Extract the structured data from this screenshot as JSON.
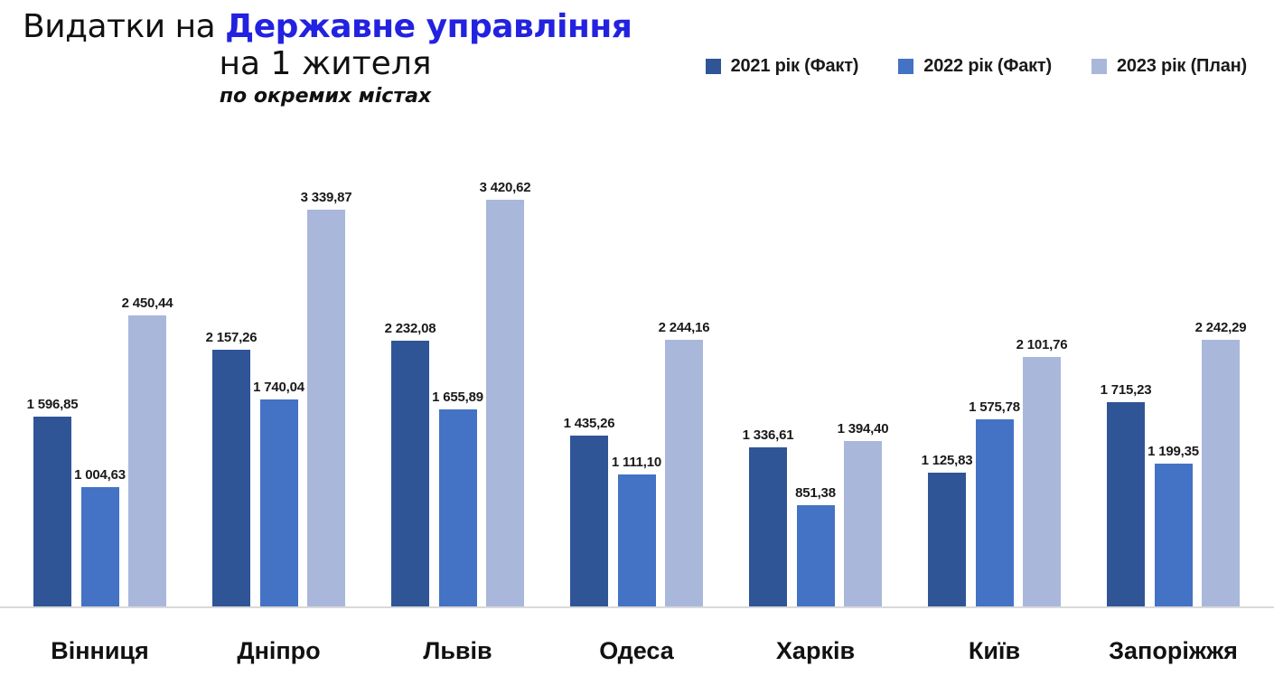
{
  "title": {
    "line1_black": "Видатки на ",
    "line1_blue": "Державне управління",
    "line2": "на 1 жителя",
    "line3": "по окремих містах",
    "blue_color": "#2222E0"
  },
  "legend": [
    {
      "label": "2021 рік (Факт)",
      "color": "#2F5597"
    },
    {
      "label": "2022 рік (Факт)",
      "color": "#4472C4"
    },
    {
      "label": "2023 рік (План)",
      "color": "#A9B7DB"
    }
  ],
  "chart_data": {
    "type": "bar",
    "title": "Видатки на Державне управління на 1 жителя по окремих містах",
    "categories": [
      "Вінниця",
      "Дніпро",
      "Львів",
      "Одеса",
      "Харків",
      "Київ",
      "Запоріжжя"
    ],
    "series": [
      {
        "name": "2021 рік (Факт)",
        "color": "#2F5597",
        "values": [
          1596.85,
          2157.26,
          2232.08,
          1435.26,
          1336.61,
          1125.83,
          1715.23
        ],
        "labels": [
          "1 596,85",
          "2 157,26",
          "2 232,08",
          "1 435,26",
          "1 336,61",
          "1 125,83",
          "1 715,23"
        ]
      },
      {
        "name": "2022 рік (Факт)",
        "color": "#4472C4",
        "values": [
          1004.63,
          1740.04,
          1655.89,
          1111.1,
          851.38,
          1575.78,
          1199.35
        ],
        "labels": [
          "1 004,63",
          "1 740,04",
          "1 655,89",
          "1 111,10",
          "851,38",
          "1 575,78",
          "1 199,35"
        ]
      },
      {
        "name": "2023 рік (План)",
        "color": "#A9B7DB",
        "values": [
          2450.44,
          3339.87,
          3420.62,
          2244.16,
          1394.4,
          2101.76,
          2242.29
        ],
        "labels": [
          "2 450,44",
          "3 339,87",
          "3 420,62",
          "2 244,16",
          "1 394,40",
          "2 101,76",
          "2 242,29"
        ]
      }
    ],
    "xlabel": "",
    "ylabel": "",
    "ylim": [
      0,
      3600
    ],
    "grid": false,
    "axis_visible": false,
    "value_labels_shown": true,
    "legend_position": "top-right"
  }
}
